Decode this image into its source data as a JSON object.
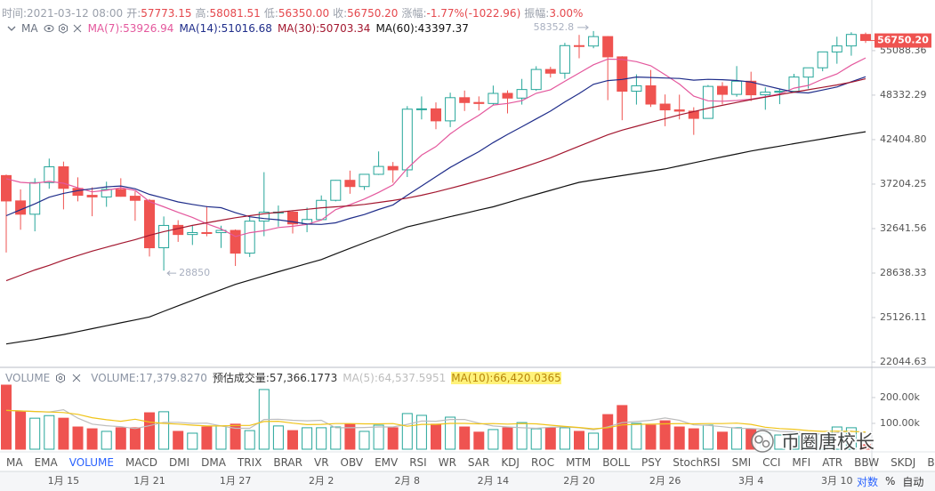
{
  "info": [
    {
      "label": "时间:",
      "value": "2021-03-12 08:00"
    },
    {
      "label": "开:",
      "value": "57773.15"
    },
    {
      "label": "高:",
      "value": "58081.51"
    },
    {
      "label": "低:",
      "value": "56350.00"
    },
    {
      "label": "收:",
      "value": "56750.20"
    },
    {
      "label": "涨幅:",
      "value": "-1.77%(-1022.96)"
    },
    {
      "label": "振幅:",
      "value": "3.00%"
    }
  ],
  "chart_data": [
    {
      "type": "candlestick",
      "legend_title": "MA",
      "log_scale": true,
      "categories": [
        null,
        null,
        null,
        null,
        "1月 15",
        null,
        null,
        null,
        null,
        null,
        "1月 21",
        null,
        null,
        null,
        null,
        null,
        "1月 27",
        null,
        null,
        null,
        null,
        null,
        "2月 2",
        null,
        null,
        null,
        null,
        null,
        "2月 8",
        null,
        null,
        null,
        null,
        null,
        "2月 14",
        null,
        null,
        null,
        null,
        null,
        "2月 20",
        null,
        null,
        null,
        null,
        null,
        "2月 26",
        null,
        null,
        null,
        null,
        null,
        "3月 4",
        null,
        null,
        null,
        null,
        null,
        "3月 10",
        null,
        null
      ],
      "open": [
        38150,
        35410,
        34049,
        37371,
        39145,
        36737,
        35994,
        35825,
        36623,
        35901,
        35468,
        30852,
        32950,
        32078,
        32259,
        32254,
        32465,
        30367,
        33368,
        34246,
        34262,
        33092,
        33517,
        35472,
        37620,
        36936,
        38289,
        39181,
        38795,
        46374,
        46421,
        44807,
        47968,
        47298,
        47157,
        48580,
        47911,
        49134,
        52118,
        51553,
        55906,
        55841,
        57412,
        54087,
        48891,
        49676,
        47073,
        46277,
        46104,
        45134,
        49595,
        48436,
        50349,
        48374,
        48746,
        48882,
        50959,
        52376,
        54875,
        55851,
        57773.15
      ],
      "high": [
        38264,
        36628,
        37850,
        40100,
        39747,
        37950,
        36852,
        37469,
        37850,
        36415,
        35600,
        33826,
        33456,
        32944,
        34875,
        32921,
        32557,
        33783,
        38531,
        34933,
        34342,
        34717,
        35984,
        37662,
        38708,
        38310,
        40955,
        39700,
        46794,
        48142,
        47310,
        48678,
        48985,
        48150,
        49707,
        49010,
        50689,
        52618,
        52530,
        56368,
        57700,
        58352.8,
        57508,
        54183,
        51374,
        52041,
        48424,
        48394,
        46638,
        49790,
        50200,
        52640,
        51773,
        49448,
        49200,
        51450,
        52402,
        54895,
        57387,
        58150,
        58081.51
      ],
      "low": [
        30420,
        32531,
        32380,
        36701,
        34538,
        35357,
        33850,
        34800,
        35844,
        33400,
        30071,
        28850,
        31390,
        31106,
        31910,
        30837,
        29241,
        30023,
        31916,
        32825,
        32171,
        32296,
        33418,
        35362,
        36161,
        36570,
        38215,
        37351,
        37988,
        45000,
        43727,
        43994,
        46125,
        46202,
        47014,
        45800,
        47003,
        48947,
        50900,
        50710,
        53863,
        55477,
        47622,
        44892,
        47004,
        46674,
        44107,
        45000,
        43000,
        45115,
        47047,
        48100,
        47500,
        46300,
        47070,
        48882,
        49274,
        51845,
        53005,
        54272,
        56350
      ],
      "close": [
        35404,
        34051,
        37371,
        39144,
        36742,
        35994,
        35828,
        36631,
        35891,
        35468,
        30850,
        32945,
        32078,
        32260,
        32254,
        32467,
        30366,
        33364,
        34252,
        34262,
        33092,
        33526,
        35466,
        37618,
        36936,
        38290,
        39186,
        38795,
        46374,
        46420,
        44807,
        47969,
        47287,
        47153,
        48577,
        47911,
        49133,
        52119,
        51552,
        55906,
        55841,
        57408,
        54087,
        48891,
        49676,
        47073,
        46276,
        46106,
        45135,
        49587,
        48440,
        50349,
        48374,
        48751,
        48882,
        50971,
        52375,
        54884,
        55851,
        57773,
        56750.2
      ],
      "up_color": "#26a69a",
      "down_color": "#ef5350",
      "ylim": [
        21760,
        63100
      ],
      "yticks": [
        55088.36,
        48332.29,
        42404.8,
        37204.25,
        32641.56,
        28638.33,
        25126.11,
        22044.63
      ],
      "ytick_labels": [
        "55088.36",
        "48332.29",
        "42404.80",
        "37204.25",
        "32641.56",
        "28638.33",
        "25126.11",
        "22044.63"
      ],
      "last_price": {
        "value": 56750.2,
        "label": "56750.20"
      },
      "series": [
        {
          "name": "MA(7):53926.94",
          "color": "#e4589d",
          "values": [
            37800,
            37400,
            37300,
            37500,
            37300,
            36800,
            36362,
            36537,
            36800,
            36528,
            35343,
            34801,
            34242,
            33732,
            33107,
            32617,
            31889,
            32248,
            32434,
            32746,
            32865,
            33047,
            33475,
            34511,
            35022,
            35599,
            36302,
            37117,
            38952,
            40517,
            41544,
            43120,
            44405,
            45544,
            46941,
            47161,
            47548,
            48593,
            49105,
            50336,
            51577,
            52839,
            53721,
            53686,
            53337,
            52697,
            51322,
            49931,
            48178,
            47535,
            47470,
            47567,
            47752,
            48106,
            48503,
            49336,
            49735,
            50655,
            51441,
            52784,
            53926.94
          ]
        },
        {
          "name": "MA(14):51016.68",
          "color": "#1f2d8a",
          "values": [
            33900,
            34500,
            35100,
            35800,
            36200,
            36500,
            36700,
            36900,
            37000,
            36700,
            36100,
            35700,
            35300,
            35047,
            34822,
            34709,
            34208,
            33796,
            33618,
            33494,
            33299,
            33077,
            33046,
            33200,
            33635,
            34017,
            34524,
            34991,
            36000,
            36996,
            38028,
            39071,
            40002,
            40923,
            42029,
            43056,
            44033,
            45068,
            46112,
            47371,
            48560,
            49890,
            50441,
            50617,
            50965,
            50901,
            50829,
            50754,
            50508,
            50628,
            50578,
            50452,
            50225,
            49714,
            49217,
            48757,
            48635,
            49063,
            49504,
            50268,
            51016.68
          ]
        },
        {
          "name": "MA(30):50703.34",
          "color": "#a3172f",
          "values": [
            28000,
            28450,
            28900,
            29300,
            29750,
            30150,
            30550,
            30900,
            31250,
            31600,
            32000,
            32350,
            32650,
            32950,
            33200,
            33450,
            33700,
            33900,
            34100,
            34250,
            34400,
            34550,
            34700,
            34800,
            34900,
            35050,
            35250,
            35450,
            35700,
            36000,
            36350,
            36750,
            37150,
            37600,
            38050,
            38550,
            39050,
            39600,
            40200,
            40900,
            41600,
            42300,
            43000,
            43600,
            44100,
            44600,
            45100,
            45600,
            46050,
            46500,
            46900,
            47300,
            47700,
            48050,
            48400,
            48750,
            49100,
            49450,
            49800,
            50200,
            50703.34
          ]
        },
        {
          "name": "MA(60):43397.37",
          "color": "#111111",
          "values": [
            23250,
            23400,
            23550,
            23730,
            23900,
            24110,
            24320,
            24530,
            24740,
            24950,
            25170,
            25590,
            26010,
            26430,
            26850,
            27270,
            27700,
            28050,
            28400,
            28750,
            29100,
            29450,
            29800,
            30300,
            30800,
            31300,
            31800,
            32300,
            32800,
            33130,
            33470,
            33800,
            34130,
            34470,
            34800,
            35230,
            35670,
            36100,
            36530,
            36970,
            37400,
            37650,
            37900,
            38150,
            38400,
            38650,
            38900,
            39250,
            39600,
            39950,
            40300,
            40650,
            41000,
            41300,
            41600,
            41900,
            42200,
            42500,
            42800,
            43100,
            43397.37
          ]
        }
      ]
    },
    {
      "type": "bar",
      "title": "VOLUME",
      "name": "VOLUME:17,379.8270",
      "estimate": "预估成交量:57,366.1773",
      "values": [
        248000,
        145000,
        120000,
        130000,
        120000,
        86000,
        79000,
        69000,
        83000,
        83000,
        141000,
        145000,
        69000,
        62000,
        86000,
        90000,
        97000,
        72000,
        231000,
        90000,
        72000,
        83000,
        83000,
        86000,
        97000,
        69000,
        93000,
        83000,
        138000,
        131000,
        97000,
        124000,
        86000,
        66000,
        76000,
        83000,
        103000,
        79000,
        83000,
        83000,
        69000,
        62000,
        134000,
        169000,
        100000,
        93000,
        110000,
        86000,
        79000,
        93000,
        66000,
        83000,
        79000,
        62000,
        55000,
        59000,
        62000,
        59000,
        86000,
        83000,
        17379.827
      ],
      "ylim": [
        0,
        303000
      ],
      "yticks": [
        {
          "value": 100000,
          "label": "100.00k"
        },
        {
          "value": 200000,
          "label": "200.00k"
        }
      ],
      "series": [
        {
          "name": "MA(5):64,537.5951",
          "color": "#bdbdbd",
          "values": [
            150000,
            148000,
            146000,
            144000,
            153000,
            120000,
            97000,
            91000,
            87000,
            80000,
            91000,
            104000,
            104000,
            100000,
            101000,
            90000,
            81000,
            81000,
            115000,
            116000,
            112000,
            110000,
            112000,
            83000,
            83000,
            84000,
            86000,
            86000,
            96000,
            109000,
            108000,
            115000,
            115000,
            101000,
            90000,
            86000,
            83000,
            81000,
            85000,
            86000,
            83000,
            75000,
            86000,
            103000,
            107000,
            112000,
            121000,
            112000,
            94000,
            92000,
            87000,
            81000,
            80000,
            77000,
            69000,
            68000,
            63000,
            59000,
            64000,
            70000,
            64537.5951
          ]
        },
        {
          "name": "MA(10):66,420.0365",
          "color": "#f0c419",
          "values": [
            150000,
            148000,
            146000,
            144000,
            142000,
            135000,
            122000,
            114000,
            108000,
            116000,
            105000,
            100000,
            97000,
            93000,
            90000,
            90000,
            92000,
            92000,
            107000,
            108000,
            101000,
            95000,
            96000,
            99000,
            99000,
            98000,
            98000,
            99000,
            89000,
            96000,
            96000,
            100000,
            100000,
            98000,
            99000,
            97000,
            99000,
            98000,
            93000,
            88000,
            84000,
            79000,
            83000,
            94000,
            96000,
            97000,
            98000,
            99000,
            98000,
            99000,
            99000,
            101000,
            96000,
            85000,
            80000,
            77000,
            72000,
            69000,
            70000,
            69000,
            66420.0365
          ]
        }
      ]
    }
  ],
  "tabs": [
    "MA",
    "EMA",
    "VOLUME",
    "MACD",
    "DMI",
    "DMA",
    "TRIX",
    "BRAR",
    "VR",
    "OBV",
    "EMV",
    "RSI",
    "WR",
    "SAR",
    "KDJ",
    "ROC",
    "MTM",
    "BOLL",
    "PSY",
    "StochRSI",
    "SMI",
    "CCI",
    "MFI",
    "ATR",
    "BBW",
    "SKDJ",
    "BIAS"
  ],
  "active_tab": 2,
  "scale_buttons": [
    "对数",
    "%",
    "自动"
  ],
  "active_scale": 0,
  "watermark": "币圈唐校长"
}
